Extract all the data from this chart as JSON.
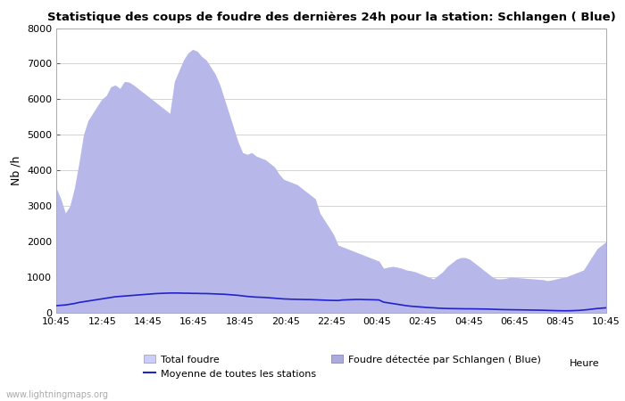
{
  "title": "Statistique des coups de foudre des dernières 24h pour la station: Schlangen ( Blue)",
  "ylabel": "Nb /h",
  "xlabel": "Heure",
  "watermark": "www.lightningmaps.org",
  "ylim": [
    0,
    8000
  ],
  "yticks": [
    0,
    1000,
    2000,
    3000,
    4000,
    5000,
    6000,
    7000,
    8000
  ],
  "x_labels": [
    "10:45",
    "12:45",
    "14:45",
    "16:45",
    "18:45",
    "20:45",
    "22:45",
    "00:45",
    "02:45",
    "04:45",
    "06:45",
    "08:45",
    "10:45"
  ],
  "total_foudre_color": "#ccccff",
  "foudre_detected_color": "#aaaadd",
  "moyenne_color": "#2222cc",
  "total_foudre": [
    3500,
    3200,
    2800,
    3000,
    3500,
    4200,
    5000,
    5400,
    5600,
    5800,
    6000,
    6100,
    6350,
    6400,
    6300,
    6500,
    6480,
    6400,
    6300,
    6200,
    6100,
    6000,
    5900,
    5800,
    5700,
    5600,
    6500,
    6800,
    7100,
    7300,
    7400,
    7350,
    7200,
    7100,
    6900,
    6700,
    6400,
    6000,
    5600,
    5200,
    4800,
    4500,
    4450,
    4500,
    4400,
    4350,
    4300,
    4200,
    4100,
    3900,
    3750,
    3700,
    3650,
    3600,
    3500,
    3400,
    3300,
    3200,
    2800,
    2600,
    2400,
    2200,
    1900,
    1850,
    1800,
    1750,
    1700,
    1650,
    1600,
    1550,
    1500,
    1450,
    1250,
    1280,
    1300,
    1280,
    1250,
    1200,
    1180,
    1150,
    1100,
    1050,
    1000,
    950,
    1050,
    1150,
    1300,
    1400,
    1500,
    1550,
    1550,
    1500,
    1400,
    1300,
    1200,
    1100,
    1000,
    950,
    950,
    970,
    1000,
    990,
    980,
    970,
    960,
    950,
    940,
    930,
    900,
    920,
    950,
    980,
    1000,
    1050,
    1100,
    1150,
    1200,
    1400,
    1600,
    1800,
    1900,
    2000
  ],
  "foudre_detected": [
    3500,
    3200,
    2800,
    3000,
    3500,
    4200,
    5000,
    5400,
    5600,
    5800,
    6000,
    6100,
    6350,
    6400,
    6300,
    6500,
    6480,
    6400,
    6300,
    6200,
    6100,
    6000,
    5900,
    5800,
    5700,
    5600,
    6500,
    6800,
    7100,
    7300,
    7400,
    7350,
    7200,
    7100,
    6900,
    6700,
    6400,
    6000,
    5600,
    5200,
    4800,
    4500,
    4450,
    4500,
    4400,
    4350,
    4300,
    4200,
    4100,
    3900,
    3750,
    3700,
    3650,
    3600,
    3500,
    3400,
    3300,
    3200,
    2800,
    2600,
    2400,
    2200,
    1900,
    1850,
    1800,
    1750,
    1700,
    1650,
    1600,
    1550,
    1500,
    1450,
    1250,
    1280,
    1300,
    1280,
    1250,
    1200,
    1180,
    1150,
    1100,
    1050,
    1000,
    950,
    1050,
    1150,
    1300,
    1400,
    1500,
    1550,
    1550,
    1500,
    1400,
    1300,
    1200,
    1100,
    1000,
    950,
    950,
    970,
    1000,
    990,
    980,
    970,
    960,
    950,
    940,
    930,
    900,
    920,
    950,
    980,
    1000,
    1050,
    1100,
    1150,
    1200,
    1400,
    1600,
    1800,
    1900,
    2000
  ],
  "moyenne": [
    200,
    210,
    220,
    240,
    260,
    290,
    310,
    330,
    350,
    370,
    390,
    410,
    430,
    450,
    460,
    470,
    480,
    490,
    500,
    510,
    520,
    530,
    540,
    545,
    550,
    555,
    555,
    555,
    550,
    550,
    545,
    545,
    540,
    540,
    535,
    530,
    525,
    520,
    510,
    500,
    490,
    475,
    460,
    450,
    440,
    435,
    430,
    420,
    410,
    400,
    390,
    385,
    380,
    378,
    375,
    372,
    370,
    365,
    360,
    355,
    350,
    348,
    345,
    360,
    365,
    370,
    375,
    375,
    370,
    368,
    365,
    360,
    300,
    280,
    260,
    240,
    220,
    200,
    185,
    175,
    165,
    155,
    145,
    140,
    130,
    125,
    120,
    118,
    116,
    114,
    112,
    112,
    110,
    108,
    106,
    104,
    100,
    95,
    90,
    88,
    86,
    84,
    82,
    80,
    78,
    76,
    74,
    72,
    68,
    64,
    60,
    58,
    56,
    58,
    62,
    68,
    78,
    90,
    105,
    120,
    130,
    140
  ]
}
